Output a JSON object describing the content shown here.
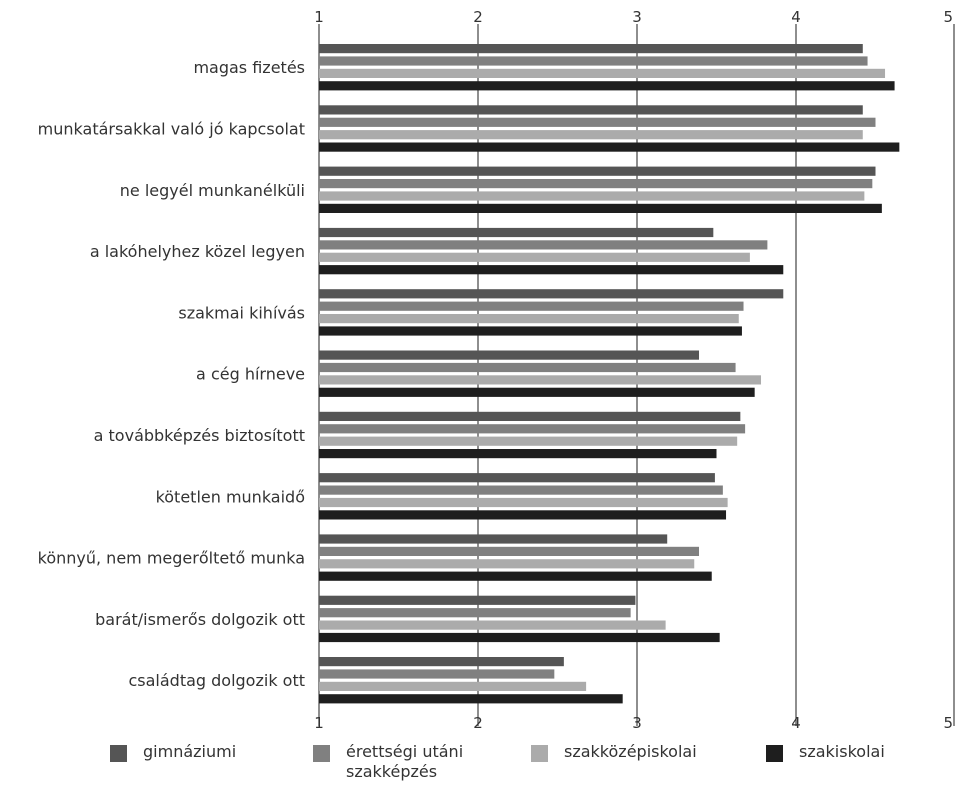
{
  "chart_data": {
    "type": "bar",
    "orientation": "horizontal",
    "title": "",
    "xlabel": "",
    "ylabel": "",
    "xlim": [
      1,
      5
    ],
    "ticks": [
      "1",
      "2",
      "3",
      "4",
      "5"
    ],
    "grid": true,
    "legend_position": "bottom",
    "categories": [
      "magas fizetés",
      "munkatársakkal való jó kapcsolat",
      "ne legyél munkanélküli",
      "a lakóhelyhez közel legyen",
      "szakmai kihívás",
      "a cég hírneve",
      "a továbbképzés biztosított",
      "kötetlen munkaidő",
      "könnyű, nem megerőltető munka",
      "barát/ismerős dolgozik ott",
      "családtag dolgozik ott"
    ],
    "series": [
      {
        "name": "gimnáziumi",
        "color": "#555555",
        "values": [
          4.42,
          4.42,
          4.5,
          3.48,
          3.92,
          3.39,
          3.65,
          3.49,
          3.19,
          2.99,
          2.54
        ]
      },
      {
        "name": "érettségi utáni szakképzés",
        "color": "#808080",
        "values": [
          4.45,
          4.5,
          4.48,
          3.82,
          3.67,
          3.62,
          3.68,
          3.54,
          3.39,
          2.96,
          2.48
        ]
      },
      {
        "name": "szakközépiskolai",
        "color": "#ababab",
        "values": [
          4.56,
          4.42,
          4.43,
          3.71,
          3.64,
          3.78,
          3.63,
          3.57,
          3.36,
          3.18,
          2.68
        ]
      },
      {
        "name": "szakiskolai",
        "color": "#1e1e1e",
        "values": [
          4.62,
          4.65,
          4.54,
          3.92,
          3.66,
          3.74,
          3.5,
          3.56,
          3.47,
          3.52,
          2.91
        ]
      }
    ]
  }
}
